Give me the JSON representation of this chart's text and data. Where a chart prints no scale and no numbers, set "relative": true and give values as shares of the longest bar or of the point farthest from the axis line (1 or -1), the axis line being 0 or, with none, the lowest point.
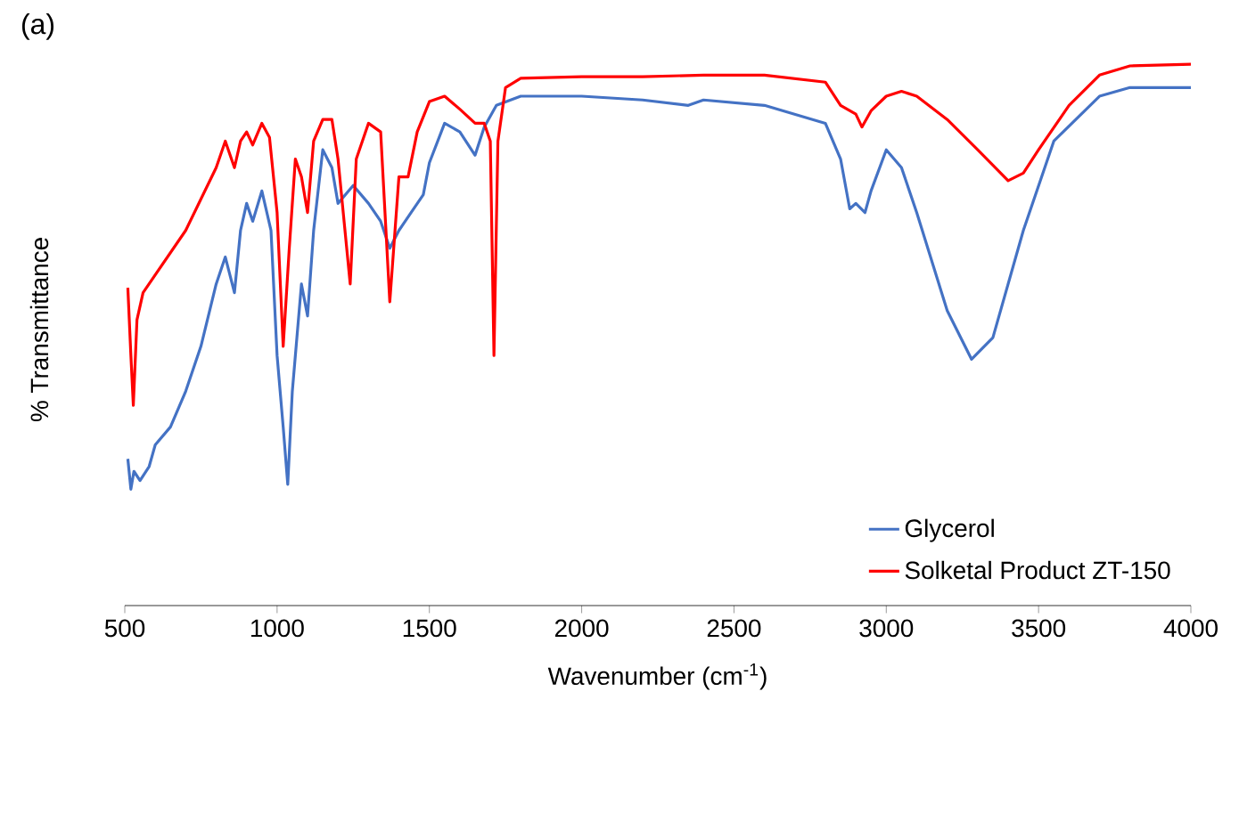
{
  "chart_data": {
    "type": "line",
    "relative": true,
    "xlabel": "Wavenumber (cm$^{-1}$)",
    "ylabel": "% Transmittance",
    "annotations": [
      "(a)"
    ],
    "xlim": [
      500,
      4000
    ],
    "xticks": [
      500,
      1000,
      1500,
      2000,
      2500,
      3000,
      3500,
      4000
    ],
    "grid": false,
    "legend": "bottom right",
    "marker": "none",
    "line_style": "solid",
    "series": [
      {
        "name": "Glycerol",
        "color": "#4472c4",
        "x": [
          510,
          520,
          530,
          550,
          580,
          600,
          650,
          700,
          750,
          800,
          830,
          860,
          880,
          900,
          920,
          950,
          980,
          1000,
          1020,
          1035,
          1050,
          1080,
          1100,
          1120,
          1150,
          1180,
          1200,
          1250,
          1300,
          1340,
          1370,
          1400,
          1440,
          1480,
          1500,
          1550,
          1600,
          1650,
          1680,
          1720,
          1800,
          2000,
          2200,
          2350,
          2400,
          2600,
          2800,
          2850,
          2880,
          2900,
          2930,
          2950,
          3000,
          3050,
          3100,
          3200,
          3280,
          3350,
          3450,
          3550,
          3700,
          3800,
          4000
        ],
        "values": [
          0.271,
          0.215,
          0.248,
          0.231,
          0.257,
          0.297,
          0.33,
          0.396,
          0.479,
          0.594,
          0.644,
          0.578,
          0.693,
          0.743,
          0.71,
          0.766,
          0.693,
          0.462,
          0.33,
          0.224,
          0.396,
          0.594,
          0.535,
          0.693,
          0.842,
          0.809,
          0.743,
          0.776,
          0.743,
          0.71,
          0.66,
          0.693,
          0.726,
          0.759,
          0.818,
          0.891,
          0.875,
          0.832,
          0.884,
          0.924,
          0.941,
          0.941,
          0.934,
          0.924,
          0.934,
          0.924,
          0.891,
          0.825,
          0.733,
          0.743,
          0.726,
          0.766,
          0.842,
          0.809,
          0.726,
          0.545,
          0.455,
          0.495,
          0.693,
          0.858,
          0.941,
          0.957,
          0.957
        ]
      },
      {
        "name": "Solketal Product ZT-150",
        "color": "#ff0000",
        "x": [
          510,
          520,
          528,
          540,
          560,
          600,
          700,
          800,
          830,
          860,
          880,
          900,
          920,
          950,
          975,
          1000,
          1020,
          1040,
          1060,
          1080,
          1100,
          1120,
          1150,
          1180,
          1200,
          1240,
          1260,
          1300,
          1340,
          1370,
          1400,
          1430,
          1460,
          1500,
          1550,
          1600,
          1650,
          1680,
          1700,
          1712,
          1725,
          1750,
          1800,
          2000,
          2200,
          2400,
          2600,
          2800,
          2850,
          2900,
          2920,
          2950,
          3000,
          3050,
          3100,
          3200,
          3300,
          3400,
          3450,
          3500,
          3600,
          3700,
          3800,
          4000
        ],
        "values": [
          0.587,
          0.462,
          0.37,
          0.528,
          0.578,
          0.611,
          0.693,
          0.809,
          0.858,
          0.809,
          0.858,
          0.875,
          0.851,
          0.891,
          0.865,
          0.726,
          0.479,
          0.66,
          0.825,
          0.792,
          0.726,
          0.858,
          0.898,
          0.898,
          0.825,
          0.594,
          0.825,
          0.891,
          0.875,
          0.561,
          0.792,
          0.792,
          0.875,
          0.931,
          0.941,
          0.917,
          0.891,
          0.891,
          0.858,
          0.462,
          0.858,
          0.957,
          0.974,
          0.977,
          0.977,
          0.98,
          0.98,
          0.967,
          0.924,
          0.908,
          0.884,
          0.914,
          0.941,
          0.95,
          0.941,
          0.898,
          0.842,
          0.785,
          0.799,
          0.842,
          0.924,
          0.98,
          0.997,
          1
        ]
      }
    ]
  }
}
